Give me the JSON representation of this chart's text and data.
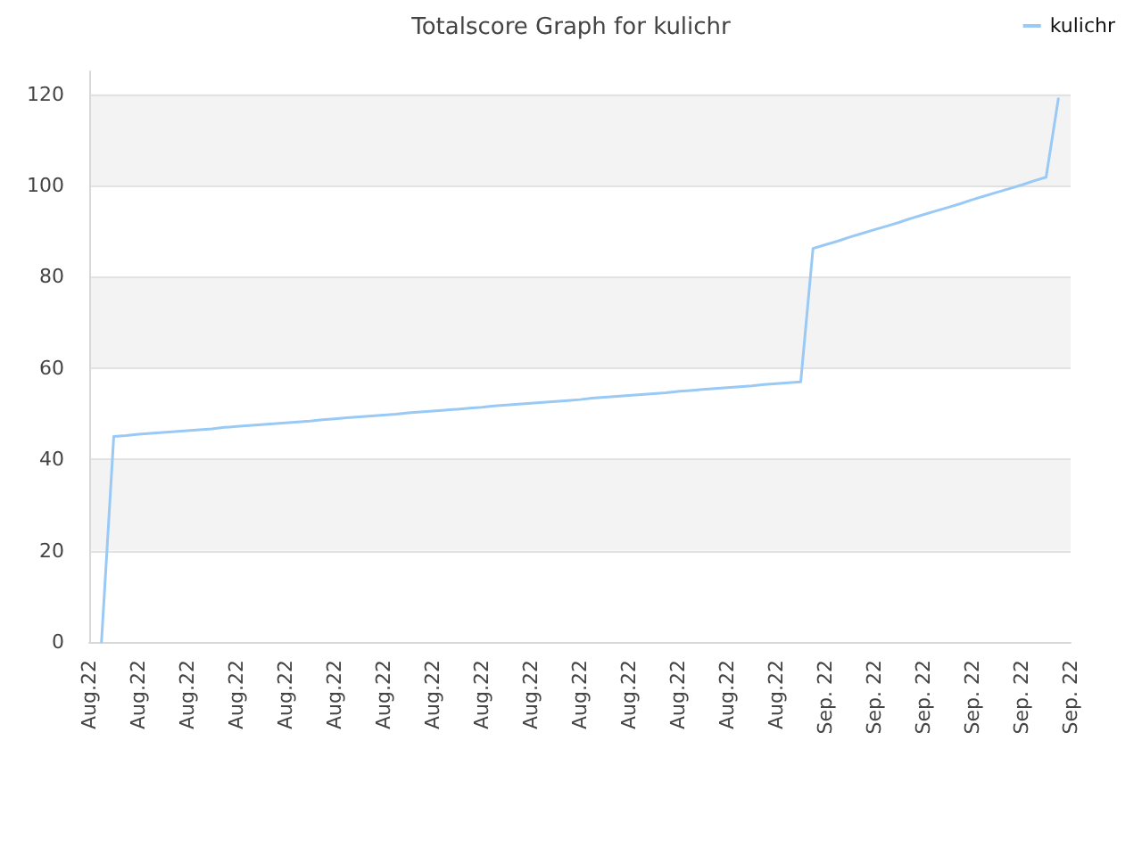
{
  "chart_data": {
    "type": "line",
    "title": "Totalscore Graph for kulichr",
    "categories": [
      "Aug.22",
      null,
      null,
      null,
      "Aug.22",
      null,
      null,
      null,
      "Aug.22",
      null,
      null,
      null,
      "Aug.22",
      null,
      null,
      null,
      "Aug.22",
      null,
      null,
      null,
      "Aug.22",
      null,
      null,
      null,
      "Aug.22",
      null,
      null,
      null,
      "Aug.22",
      null,
      null,
      null,
      "Aug.22",
      null,
      null,
      null,
      "Aug.22",
      null,
      null,
      null,
      "Aug.22",
      null,
      null,
      null,
      "Aug.22",
      null,
      null,
      null,
      "Aug.22",
      null,
      null,
      null,
      "Aug.22",
      null,
      null,
      null,
      "Aug.22",
      null,
      null,
      null,
      "Sep. 22",
      null,
      null,
      null,
      "Sep. 22",
      null,
      null,
      null,
      "Sep. 22",
      null,
      null,
      null,
      "Sep. 22",
      null,
      null,
      null,
      "Sep. 22",
      null,
      null,
      null,
      "Sep. 22"
    ],
    "series": [
      {
        "name": "kulichr",
        "color": "#99c9f5",
        "values": [
          null,
          0,
          45.0,
          45.2,
          45.5,
          45.7,
          45.9,
          46.1,
          46.3,
          46.5,
          46.7,
          47.0,
          47.2,
          47.4,
          47.6,
          47.8,
          48.0,
          48.2,
          48.4,
          48.7,
          48.9,
          49.1,
          49.3,
          49.5,
          49.7,
          49.9,
          50.2,
          50.4,
          50.6,
          50.8,
          51.0,
          51.2,
          51.4,
          51.7,
          51.9,
          52.1,
          52.3,
          52.5,
          52.7,
          52.9,
          53.1,
          53.4,
          53.6,
          53.8,
          54.0,
          54.2,
          54.4,
          54.6,
          54.9,
          55.1,
          55.3,
          55.5,
          55.7,
          55.9,
          56.1,
          56.4,
          56.6,
          56.8,
          57.0,
          86.2,
          87.0,
          87.8,
          88.7,
          89.5,
          90.3,
          91.1,
          91.9,
          92.8,
          93.6,
          94.4,
          95.2,
          96.0,
          96.9,
          97.7,
          98.5,
          99.3,
          100.1,
          101.0,
          101.8,
          119,
          null
        ]
      }
    ],
    "ylim": [
      0,
      125
    ],
    "yticks": [
      0,
      20,
      40,
      60,
      80,
      100,
      120
    ],
    "grid": "y",
    "legend": "top right",
    "marker": "none",
    "line_style": "solid"
  }
}
